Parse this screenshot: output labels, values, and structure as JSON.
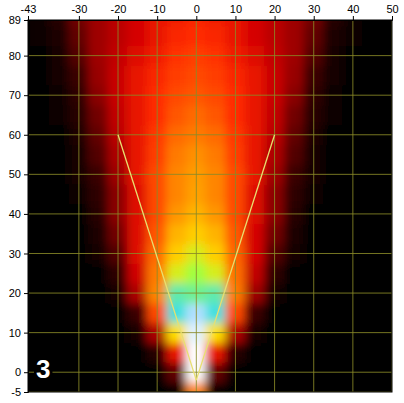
{
  "chart_data": {
    "type": "heatmap",
    "x": [
      -40,
      -35,
      -30,
      -25,
      -20,
      -15,
      -10,
      -5,
      0,
      5,
      10,
      15,
      20,
      25,
      30,
      35,
      40,
      45,
      50
    ],
    "y": [
      -5,
      0,
      5,
      10,
      15,
      20,
      25,
      30,
      35,
      40,
      45,
      50,
      55,
      60,
      65,
      70,
      75,
      80,
      85,
      90
    ],
    "cells": [
      [
        0,
        0,
        0,
        0,
        0,
        0,
        0,
        0,
        60,
        0,
        0,
        0,
        0,
        0,
        0,
        0,
        0,
        0,
        0
      ],
      [
        0,
        0,
        0,
        0,
        0,
        0,
        0,
        20,
        100,
        20,
        0,
        0,
        0,
        0,
        0,
        0,
        0,
        0,
        0
      ],
      [
        0,
        0,
        0,
        0,
        0,
        0,
        10,
        40,
        100,
        40,
        10,
        0,
        0,
        0,
        0,
        0,
        0,
        0,
        0
      ],
      [
        0,
        0,
        0,
        0,
        0,
        5,
        30,
        75,
        98,
        75,
        30,
        5,
        0,
        0,
        0,
        0,
        0,
        0,
        0
      ],
      [
        0,
        0,
        0,
        0,
        0,
        15,
        50,
        88,
        95,
        88,
        50,
        15,
        0,
        0,
        0,
        0,
        0,
        0,
        0
      ],
      [
        0,
        0,
        0,
        0,
        5,
        30,
        60,
        86,
        85,
        86,
        58,
        28,
        5,
        0,
        0,
        0,
        0,
        0,
        0
      ],
      [
        0,
        0,
        0,
        0,
        12,
        35,
        58,
        78,
        82,
        78,
        56,
        33,
        12,
        0,
        0,
        0,
        0,
        0,
        0
      ],
      [
        0,
        0,
        0,
        5,
        18,
        38,
        55,
        72,
        78,
        72,
        54,
        36,
        18,
        5,
        0,
        0,
        0,
        0,
        0
      ],
      [
        0,
        0,
        0,
        8,
        22,
        38,
        52,
        68,
        72,
        68,
        52,
        36,
        22,
        8,
        0,
        0,
        0,
        0,
        0
      ],
      [
        0,
        0,
        0,
        10,
        25,
        38,
        50,
        63,
        68,
        63,
        50,
        38,
        25,
        10,
        0,
        0,
        0,
        0,
        0
      ],
      [
        0,
        0,
        3,
        12,
        25,
        38,
        50,
        60,
        65,
        60,
        50,
        38,
        25,
        12,
        3,
        0,
        0,
        0,
        0
      ],
      [
        0,
        0,
        5,
        15,
        28,
        40,
        50,
        60,
        64,
        60,
        50,
        40,
        28,
        15,
        5,
        0,
        0,
        0,
        0
      ],
      [
        0,
        0,
        6,
        18,
        30,
        40,
        48,
        58,
        62,
        58,
        48,
        40,
        30,
        18,
        6,
        0,
        0,
        0,
        0
      ],
      [
        0,
        0,
        8,
        20,
        32,
        40,
        47,
        55,
        58,
        55,
        47,
        40,
        32,
        20,
        8,
        0,
        0,
        0,
        0
      ],
      [
        0,
        2,
        10,
        22,
        33,
        40,
        45,
        52,
        55,
        52,
        45,
        40,
        33,
        22,
        10,
        2,
        0,
        0,
        0
      ],
      [
        0,
        3,
        12,
        25,
        34,
        40,
        45,
        50,
        52,
        50,
        45,
        40,
        34,
        25,
        12,
        3,
        0,
        0,
        0
      ],
      [
        0,
        5,
        15,
        27,
        34,
        40,
        44,
        48,
        50,
        48,
        44,
        40,
        34,
        27,
        15,
        5,
        0,
        0,
        0
      ],
      [
        0,
        6,
        18,
        28,
        33,
        38,
        42,
        46,
        48,
        46,
        42,
        38,
        33,
        28,
        18,
        6,
        0,
        0,
        0
      ],
      [
        2,
        8,
        20,
        28,
        32,
        36,
        40,
        44,
        45,
        44,
        40,
        36,
        32,
        28,
        20,
        8,
        2,
        0,
        0
      ],
      [
        3,
        10,
        22,
        28,
        32,
        36,
        40,
        42,
        44,
        42,
        40,
        36,
        32,
        28,
        22,
        10,
        3,
        0,
        0
      ]
    ],
    "zlim": [
      0,
      100
    ],
    "xlim": [
      -43,
      50
    ],
    "ylim": [
      -5,
      89
    ],
    "xticks": [
      -43,
      -30,
      -20,
      -10,
      0,
      10,
      20,
      30,
      40,
      50
    ],
    "yticks": [
      -5,
      0,
      10,
      20,
      30,
      40,
      50,
      60,
      70,
      80,
      89
    ],
    "grid": true,
    "guide_lines": [
      {
        "x": [
          0,
          -20
        ],
        "y": [
          -2,
          60
        ]
      },
      {
        "x": [
          0,
          20
        ],
        "y": [
          -2,
          60
        ]
      }
    ],
    "panel_label": "3"
  }
}
